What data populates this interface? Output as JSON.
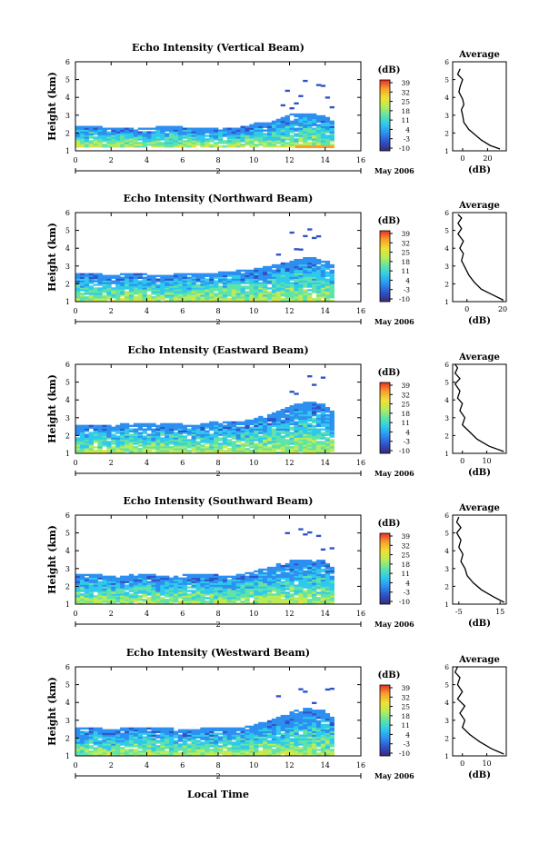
{
  "colorbar": {
    "unit_label": "(dB)",
    "ticks": [
      "39",
      "32",
      "25",
      "18",
      "11",
      "4",
      "-3",
      "-10"
    ],
    "stops": [
      "#3a2a7a",
      "#2f52c9",
      "#2d8ff0",
      "#2ec9ec",
      "#5fe3a8",
      "#b9ec58",
      "#f0e034",
      "#f7a02c",
      "#ec2b24"
    ]
  },
  "date_label": "May 2006",
  "xlabel_bottom": "Local Time",
  "chart_data": [
    {
      "type": "heatmap",
      "title": "Echo Intensity (Vertical Beam)",
      "ylabel": "Height (km)",
      "xlim": [
        0,
        16
      ],
      "ylim": [
        1,
        6
      ],
      "xticks": [
        "0",
        "2",
        "4",
        "6",
        "8",
        "10",
        "12",
        "14",
        "16"
      ],
      "yticks": [
        "1",
        "2",
        "3",
        "4",
        "5",
        "6"
      ],
      "day_marker": "2",
      "top_profile": [
        [
          0,
          2.3
        ],
        [
          1,
          2.4
        ],
        [
          2,
          2.2
        ],
        [
          3,
          2.3
        ],
        [
          4,
          2.2
        ],
        [
          5,
          2.4
        ],
        [
          6,
          2.3
        ],
        [
          7,
          2.2
        ],
        [
          8,
          2.3
        ],
        [
          9,
          2.2
        ],
        [
          10,
          2.5
        ],
        [
          11,
          2.6
        ],
        [
          12,
          3.0
        ],
        [
          13,
          3.1
        ],
        [
          14,
          2.9
        ],
        [
          14.5,
          2.6
        ]
      ],
      "bottom_level": 1.2,
      "avg_profile": {
        "title": "Average",
        "xlabel": "(dB)",
        "xticks": [
          "0",
          "20"
        ],
        "xlim": [
          -8,
          35
        ],
        "x": [
          30,
          22,
          15,
          10,
          5,
          1,
          0,
          -1,
          1,
          0,
          -3,
          -2,
          0,
          -4,
          -2
        ],
        "y": [
          1.1,
          1.3,
          1.6,
          1.9,
          2.2,
          2.6,
          3.0,
          3.3,
          3.6,
          3.9,
          4.3,
          4.6,
          5.0,
          5.3,
          5.6
        ]
      }
    },
    {
      "type": "heatmap",
      "title": "Echo Intensity (Northward Beam)",
      "ylabel": "Height (km)",
      "xlim": [
        0,
        16
      ],
      "ylim": [
        1,
        6
      ],
      "xticks": [
        "0",
        "2",
        "4",
        "6",
        "8",
        "10",
        "12",
        "14",
        "16"
      ],
      "yticks": [
        "1",
        "2",
        "3",
        "4",
        "5",
        "6"
      ],
      "day_marker": "2",
      "top_profile": [
        [
          0,
          2.5
        ],
        [
          1,
          2.6
        ],
        [
          2,
          2.4
        ],
        [
          3,
          2.6
        ],
        [
          4,
          2.5
        ],
        [
          5,
          2.4
        ],
        [
          6,
          2.6
        ],
        [
          7,
          2.5
        ],
        [
          8,
          2.6
        ],
        [
          9,
          2.7
        ],
        [
          10,
          2.8
        ],
        [
          11,
          3.0
        ],
        [
          12,
          3.2
        ],
        [
          13,
          3.5
        ],
        [
          14,
          3.3
        ],
        [
          14.5,
          3.0
        ]
      ],
      "bottom_level": 1.0,
      "avg_profile": {
        "title": "Average",
        "xlabel": "(dB)",
        "xticks": [
          "0",
          "20"
        ],
        "xlim": [
          -8,
          22
        ],
        "x": [
          20,
          14,
          8,
          4,
          1,
          -1,
          -3,
          -2,
          -4,
          -2,
          -5,
          -3,
          -5,
          -3,
          -5
        ],
        "y": [
          1.1,
          1.4,
          1.7,
          2.1,
          2.5,
          2.9,
          3.3,
          3.7,
          4.0,
          4.4,
          4.8,
          5.1,
          5.4,
          5.7,
          5.9
        ]
      }
    },
    {
      "type": "heatmap",
      "title": "Echo Intensity (Eastward Beam)",
      "ylabel": "Height (km)",
      "xlim": [
        0,
        16
      ],
      "ylim": [
        1,
        6
      ],
      "xticks": [
        "0",
        "2",
        "4",
        "6",
        "8",
        "10",
        "12",
        "14",
        "16"
      ],
      "yticks": [
        "1",
        "2",
        "3",
        "4",
        "5",
        "6"
      ],
      "day_marker": "2",
      "top_profile": [
        [
          0,
          2.6
        ],
        [
          1,
          2.6
        ],
        [
          2,
          2.5
        ],
        [
          3,
          2.7
        ],
        [
          4,
          2.6
        ],
        [
          5,
          2.7
        ],
        [
          6,
          2.6
        ],
        [
          7,
          2.6
        ],
        [
          8,
          2.8
        ],
        [
          9,
          2.7
        ],
        [
          10,
          2.9
        ],
        [
          11,
          3.2
        ],
        [
          12,
          3.6
        ],
        [
          13,
          3.9
        ],
        [
          14,
          3.7
        ],
        [
          14.5,
          3.2
        ]
      ],
      "bottom_level": 1.0,
      "avg_profile": {
        "title": "Average",
        "xlabel": "(dB)",
        "xticks": [
          "0",
          "10"
        ],
        "xlim": [
          -4,
          18
        ],
        "x": [
          17,
          11,
          6,
          3,
          0,
          1,
          -1,
          0,
          -2,
          -1,
          -3,
          -1,
          -3,
          -2,
          -3
        ],
        "y": [
          1.1,
          1.4,
          1.8,
          2.2,
          2.6,
          3.0,
          3.4,
          3.8,
          4.1,
          4.5,
          4.9,
          5.2,
          5.5,
          5.8,
          6.0
        ]
      }
    },
    {
      "type": "heatmap",
      "title": "Echo Intensity (Southward Beam)",
      "ylabel": "Height (km)",
      "xlim": [
        0,
        16
      ],
      "ylim": [
        1,
        6
      ],
      "xticks": [
        "0",
        "2",
        "4",
        "6",
        "8",
        "10",
        "12",
        "14",
        "16"
      ],
      "yticks": [
        "1",
        "2",
        "3",
        "4",
        "5",
        "6"
      ],
      "day_marker": "2",
      "top_profile": [
        [
          0,
          2.6
        ],
        [
          1,
          2.7
        ],
        [
          2,
          2.5
        ],
        [
          3,
          2.6
        ],
        [
          4,
          2.7
        ],
        [
          5,
          2.5
        ],
        [
          6,
          2.6
        ],
        [
          7,
          2.7
        ],
        [
          8,
          2.6
        ],
        [
          9,
          2.6
        ],
        [
          10,
          2.8
        ],
        [
          11,
          3.1
        ],
        [
          12,
          3.4
        ],
        [
          13,
          3.5
        ],
        [
          14,
          3.4
        ],
        [
          14.5,
          3.0
        ]
      ],
      "bottom_level": 1.0,
      "avg_profile": {
        "title": "Average",
        "xlabel": "(dB)",
        "xticks": [
          "-5",
          "15"
        ],
        "xlim": [
          -8,
          18
        ],
        "x": [
          17,
          12,
          6,
          2,
          -1,
          -2,
          -4,
          -3,
          -5,
          -4,
          -6,
          -4,
          -6,
          -5
        ],
        "y": [
          1.1,
          1.4,
          1.8,
          2.2,
          2.6,
          3.0,
          3.4,
          3.8,
          4.2,
          4.6,
          5.0,
          5.3,
          5.6,
          5.9
        ]
      }
    },
    {
      "type": "heatmap",
      "title": "Echo Intensity (Westward Beam)",
      "ylabel": "Height (km)",
      "xlim": [
        0,
        16
      ],
      "ylim": [
        1,
        6
      ],
      "xticks": [
        "0",
        "2",
        "4",
        "6",
        "8",
        "10",
        "12",
        "14",
        "16"
      ],
      "yticks": [
        "1",
        "2",
        "3",
        "4",
        "5",
        "6"
      ],
      "day_marker": "2",
      "top_profile": [
        [
          0,
          2.5
        ],
        [
          1,
          2.6
        ],
        [
          2,
          2.4
        ],
        [
          3,
          2.6
        ],
        [
          4,
          2.5
        ],
        [
          5,
          2.6
        ],
        [
          6,
          2.4
        ],
        [
          7,
          2.5
        ],
        [
          8,
          2.6
        ],
        [
          9,
          2.5
        ],
        [
          10,
          2.7
        ],
        [
          11,
          3.0
        ],
        [
          12,
          3.4
        ],
        [
          13,
          3.7
        ],
        [
          14,
          3.5
        ],
        [
          14.5,
          3.0
        ]
      ],
      "bottom_level": 1.0,
      "avg_profile": {
        "title": "Average",
        "xlabel": "(dB)",
        "xticks": [
          "0",
          "10"
        ],
        "xlim": [
          -4,
          18
        ],
        "x": [
          17,
          12,
          7,
          3,
          0,
          1,
          -1,
          1,
          -2,
          0,
          -2,
          -1,
          -3,
          -2
        ],
        "y": [
          1.1,
          1.4,
          1.8,
          2.2,
          2.6,
          3.0,
          3.4,
          3.8,
          4.2,
          4.6,
          5.0,
          5.4,
          5.7,
          6.0
        ]
      }
    }
  ]
}
